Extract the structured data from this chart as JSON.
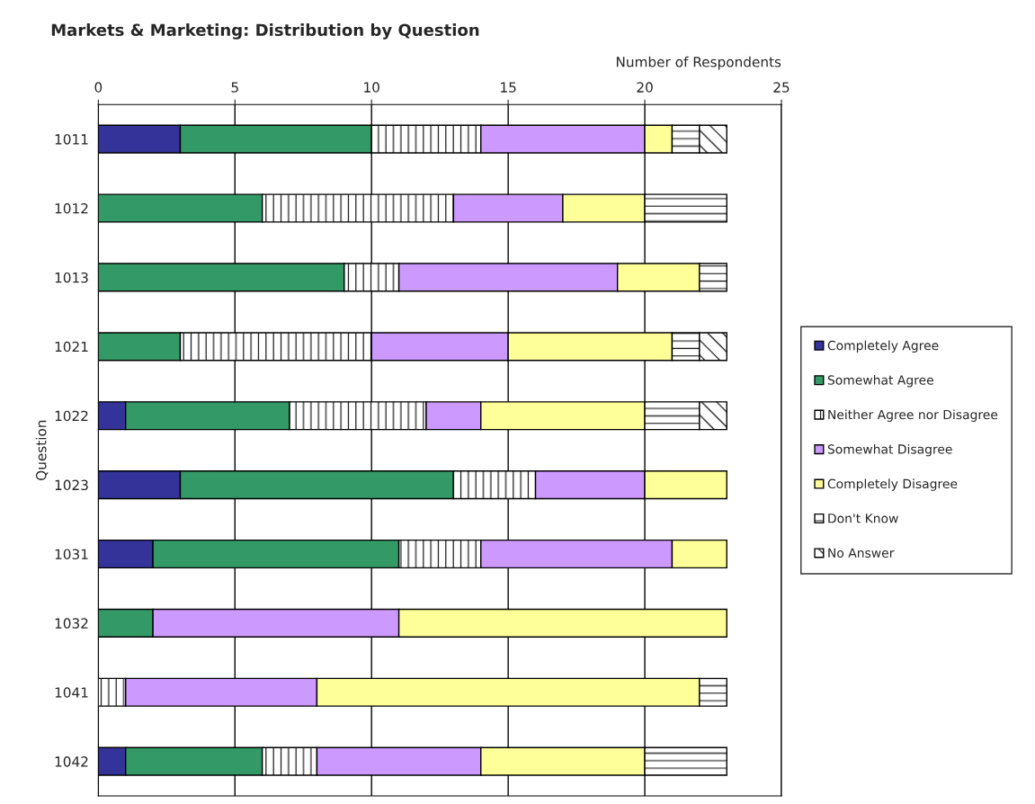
{
  "chart_data": {
    "type": "bar",
    "orientation": "horizontal",
    "stacked": true,
    "title": "Markets & Marketing: Distribution by Question",
    "xlabel": "Number of Respondents",
    "ylabel": "Question",
    "categories": [
      "1011",
      "1012",
      "1013",
      "1021",
      "1022",
      "1023",
      "1031",
      "1032",
      "1041",
      "1042"
    ],
    "series": [
      {
        "name": "Completely Agree",
        "color": "#333399",
        "values": [
          3,
          0,
          0,
          0,
          1,
          3,
          2,
          0,
          0,
          1
        ]
      },
      {
        "name": "Somewhat Agree",
        "color": "#339966",
        "values": [
          7,
          6,
          9,
          3,
          6,
          10,
          9,
          2,
          0,
          5
        ]
      },
      {
        "name": "Neither Agree nor Disagree",
        "color": "#000000",
        "values": [
          4,
          7,
          2,
          7,
          5,
          3,
          3,
          0,
          1,
          2
        ]
      },
      {
        "name": "Somewhat Disagree",
        "color": "#cc99ff",
        "values": [
          6,
          4,
          8,
          5,
          2,
          4,
          7,
          9,
          7,
          6
        ]
      },
      {
        "name": "Completely Disagree",
        "color": "#ffff99",
        "values": [
          1,
          3,
          3,
          6,
          6,
          3,
          2,
          12,
          14,
          6
        ]
      },
      {
        "name": "Don't Know",
        "color": "#000000",
        "values": [
          1,
          3,
          1,
          1,
          2,
          0,
          0,
          0,
          1,
          3
        ]
      },
      {
        "name": "No Answer",
        "color": "#000000",
        "values": [
          1,
          0,
          0,
          1,
          1,
          0,
          0,
          0,
          0,
          0
        ]
      }
    ],
    "xlim": [
      0,
      25
    ],
    "xticks": [
      0,
      5,
      10,
      15,
      20,
      25
    ],
    "grid": "x",
    "legend": "right"
  }
}
